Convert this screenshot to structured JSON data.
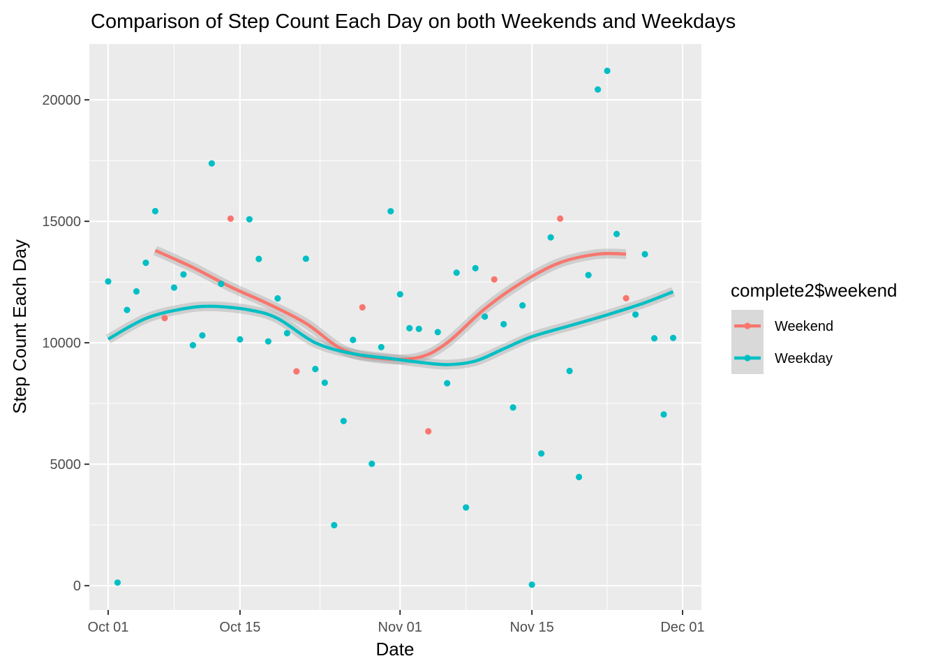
{
  "chart_data": {
    "type": "scatter",
    "title": "Comparison of Step Count Each Day on both Weekends and Weekdays",
    "xlabel": "Date",
    "ylabel": "Step Count Each Day",
    "xlim": [
      "2012-09-29",
      "2012-12-03"
    ],
    "ylim": [
      -1000,
      22300
    ],
    "x_ticks": [
      {
        "date": "2012-10-01",
        "label": "Oct 01"
      },
      {
        "date": "2012-10-15",
        "label": "Oct 15"
      },
      {
        "date": "2012-11-01",
        "label": "Nov 01"
      },
      {
        "date": "2012-11-15",
        "label": "Nov 15"
      },
      {
        "date": "2012-12-01",
        "label": "Dec 01"
      }
    ],
    "y_ticks": [
      0,
      5000,
      10000,
      15000,
      20000
    ],
    "grid": true,
    "legend": {
      "title": "complete2$weekend",
      "position": "right",
      "entries": [
        "Weekend",
        "Weekday"
      ]
    },
    "series": [
      {
        "name": "Weekend",
        "color": "#F8766D",
        "points": [
          [
            "2012-10-07",
            11015
          ],
          [
            "2012-10-14",
            15110
          ],
          [
            "2012-10-21",
            8821
          ],
          [
            "2012-10-28",
            11458
          ],
          [
            "2012-11-04",
            6355
          ],
          [
            "2012-11-11",
            12608
          ],
          [
            "2012-11-18",
            15110
          ],
          [
            "2012-11-25",
            11834
          ]
        ],
        "smooth": [
          [
            "2012-10-06",
            13800
          ],
          [
            "2012-10-10",
            13100
          ],
          [
            "2012-10-14",
            12300
          ],
          [
            "2012-10-18",
            11600
          ],
          [
            "2012-10-22",
            10800
          ],
          [
            "2012-10-26",
            9700
          ],
          [
            "2012-10-30",
            9350
          ],
          [
            "2012-11-03",
            9400
          ],
          [
            "2012-11-06",
            10000
          ],
          [
            "2012-11-10",
            11400
          ],
          [
            "2012-11-14",
            12500
          ],
          [
            "2012-11-18",
            13300
          ],
          [
            "2012-11-22",
            13650
          ],
          [
            "2012-11-25",
            13650
          ]
        ]
      },
      {
        "name": "Weekday",
        "color": "#00BFC4",
        "points": [
          [
            "2012-10-01",
            12525
          ],
          [
            "2012-10-02",
            126
          ],
          [
            "2012-10-03",
            11352
          ],
          [
            "2012-10-04",
            12116
          ],
          [
            "2012-10-05",
            13294
          ],
          [
            "2012-10-06",
            15420
          ],
          [
            "2012-10-08",
            12272
          ],
          [
            "2012-10-09",
            12811
          ],
          [
            "2012-10-10",
            9900
          ],
          [
            "2012-10-11",
            10304
          ],
          [
            "2012-10-12",
            17382
          ],
          [
            "2012-10-13",
            12426
          ],
          [
            "2012-10-15",
            10139
          ],
          [
            "2012-10-16",
            15084
          ],
          [
            "2012-10-17",
            13452
          ],
          [
            "2012-10-18",
            10056
          ],
          [
            "2012-10-19",
            11829
          ],
          [
            "2012-10-20",
            10395
          ],
          [
            "2012-10-22",
            13460
          ],
          [
            "2012-10-23",
            8918
          ],
          [
            "2012-10-24",
            8355
          ],
          [
            "2012-10-25",
            2492
          ],
          [
            "2012-10-26",
            6778
          ],
          [
            "2012-10-27",
            10119
          ],
          [
            "2012-10-29",
            5018
          ],
          [
            "2012-10-30",
            9819
          ],
          [
            "2012-10-31",
            15414
          ],
          [
            "2012-11-01",
            11997
          ],
          [
            "2012-11-02",
            10600
          ],
          [
            "2012-11-03",
            10571
          ],
          [
            "2012-11-05",
            10439
          ],
          [
            "2012-11-06",
            8334
          ],
          [
            "2012-11-07",
            12883
          ],
          [
            "2012-11-08",
            3219
          ],
          [
            "2012-11-09",
            13070
          ],
          [
            "2012-11-10",
            11076
          ],
          [
            "2012-11-12",
            10765
          ],
          [
            "2012-11-13",
            7336
          ],
          [
            "2012-11-14",
            11538
          ],
          [
            "2012-11-15",
            41
          ],
          [
            "2012-11-16",
            5441
          ],
          [
            "2012-11-17",
            14339
          ],
          [
            "2012-11-19",
            8841
          ],
          [
            "2012-11-20",
            4472
          ],
          [
            "2012-11-21",
            12787
          ],
          [
            "2012-11-22",
            20427
          ],
          [
            "2012-11-23",
            21194
          ],
          [
            "2012-11-24",
            14478
          ],
          [
            "2012-11-26",
            11162
          ],
          [
            "2012-11-27",
            13646
          ],
          [
            "2012-11-28",
            10183
          ],
          [
            "2012-11-29",
            7047
          ],
          [
            "2012-11-30",
            10200
          ]
        ],
        "smooth": [
          [
            "2012-10-01",
            10150
          ],
          [
            "2012-10-05",
            11000
          ],
          [
            "2012-10-09",
            11400
          ],
          [
            "2012-10-12",
            11500
          ],
          [
            "2012-10-16",
            11350
          ],
          [
            "2012-10-19",
            11000
          ],
          [
            "2012-10-23",
            10000
          ],
          [
            "2012-10-27",
            9550
          ],
          [
            "2012-10-31",
            9350
          ],
          [
            "2012-11-03",
            9200
          ],
          [
            "2012-11-06",
            9100
          ],
          [
            "2012-11-09",
            9250
          ],
          [
            "2012-11-12",
            9750
          ],
          [
            "2012-11-15",
            10250
          ],
          [
            "2012-11-19",
            10700
          ],
          [
            "2012-11-23",
            11150
          ],
          [
            "2012-11-27",
            11650
          ],
          [
            "2012-11-30",
            12100
          ]
        ]
      }
    ]
  }
}
